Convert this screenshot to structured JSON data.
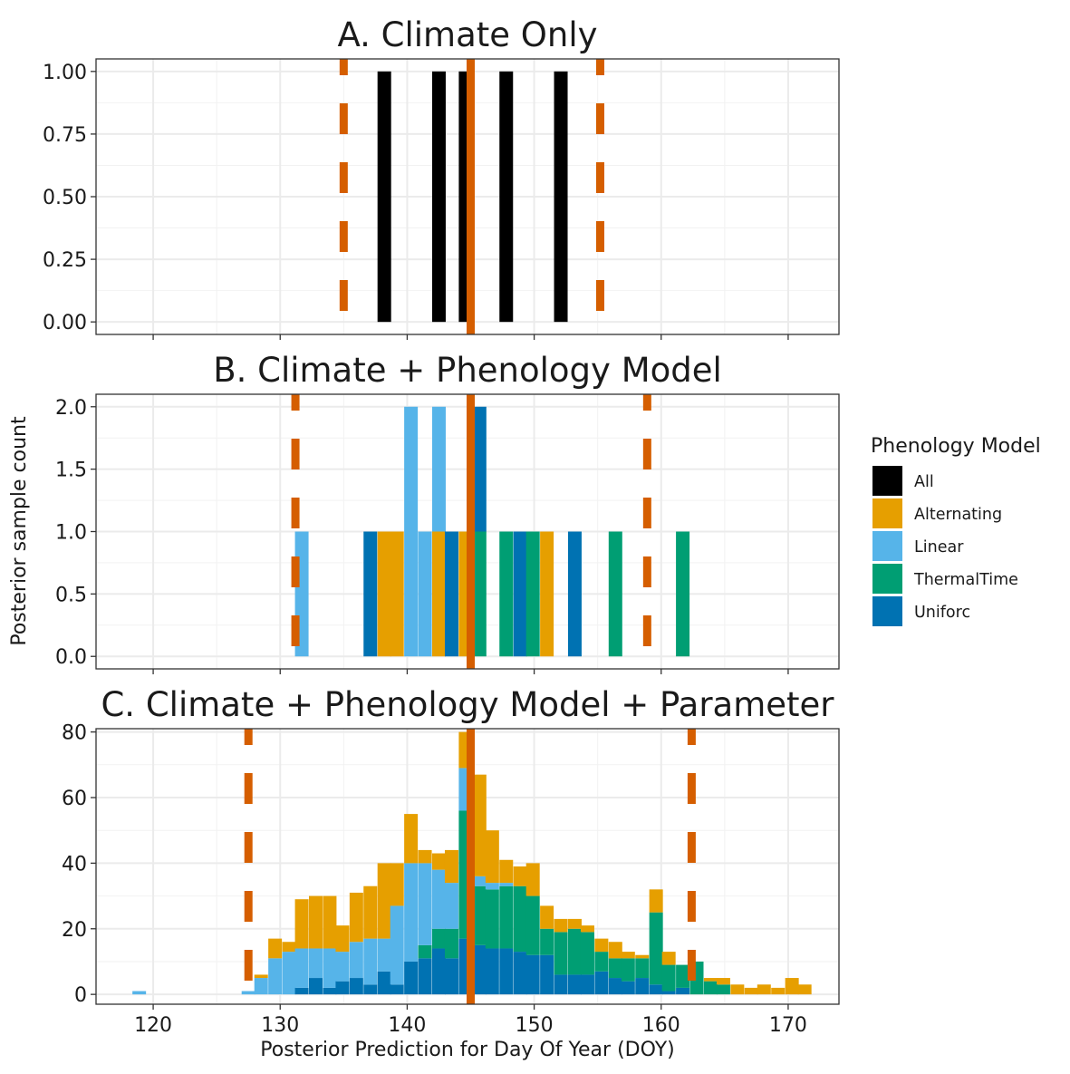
{
  "chart_data": {
    "type": "bar",
    "layout": "stacked histogram, three vertically arranged panels sharing one x axis",
    "shared": {
      "xlabel": "Posterior Prediction for Day Of Year (DOY)",
      "ylabel": "Posterior sample count",
      "xlim": [
        115.5,
        174
      ],
      "xticks": [
        120,
        130,
        140,
        150,
        160,
        170
      ],
      "bin_width": 1.07,
      "grid": true,
      "legend": {
        "title": "Phenology Model",
        "placement": "right",
        "entries": [
          {
            "name": "All",
            "color": "#000000"
          },
          {
            "name": "Alternating",
            "color": "#E69F00"
          },
          {
            "name": "Linear",
            "color": "#56B4E9"
          },
          {
            "name": "ThermalTime",
            "color": "#009E73"
          },
          {
            "name": "Uniforc",
            "color": "#0072B2"
          }
        ]
      },
      "reference_line": {
        "style": "solid",
        "color": "#D55E00",
        "x": 145.0
      }
    },
    "panels": [
      {
        "title": "A. Climate Only",
        "ylim": [
          -0.05,
          1.05
        ],
        "yticks": [
          "0.00",
          "0.25",
          "0.50",
          "0.75",
          "1.00"
        ],
        "ytick_values": [
          0,
          0.25,
          0.5,
          0.75,
          1.0
        ],
        "interval_lines": [
          135.0,
          155.2
        ],
        "bars": [
          {
            "x": 138.2,
            "series": "All",
            "value": 1
          },
          {
            "x": 142.5,
            "series": "All",
            "value": 1
          },
          {
            "x": 144.6,
            "series": "All",
            "value": 1
          },
          {
            "x": 147.8,
            "series": "All",
            "value": 1
          },
          {
            "x": 152.1,
            "series": "All",
            "value": 1
          }
        ]
      },
      {
        "title": "B. Climate + Phenology Model",
        "ylim": [
          -0.1,
          2.1
        ],
        "yticks": [
          "0.0",
          "0.5",
          "1.0",
          "1.5",
          "2.0"
        ],
        "ytick_values": [
          0,
          0.5,
          1.0,
          1.5,
          2.0
        ],
        "interval_lines": [
          131.2,
          158.9
        ],
        "bars": [
          {
            "x": 131.7,
            "series": "Linear",
            "value": 1
          },
          {
            "x": 137.1,
            "series": "Uniforc",
            "value": 1
          },
          {
            "x": 138.2,
            "series": "Alternating",
            "value": 1
          },
          {
            "x": 139.2,
            "series": "Alternating",
            "value": 1
          },
          {
            "x": 140.3,
            "series": "Linear",
            "value": 2
          },
          {
            "x": 141.4,
            "series": "Linear",
            "value": 1
          },
          {
            "x": 142.5,
            "series": "Alternating",
            "value": 1
          },
          {
            "x": 142.5,
            "series": "Linear",
            "value": 1
          },
          {
            "x": 143.5,
            "series": "Uniforc",
            "value": 1
          },
          {
            "x": 144.6,
            "series": "Alternating",
            "value": 1
          },
          {
            "x": 145.7,
            "series": "ThermalTime",
            "value": 1
          },
          {
            "x": 145.7,
            "series": "Uniforc",
            "value": 1
          },
          {
            "x": 147.8,
            "series": "ThermalTime",
            "value": 1
          },
          {
            "x": 148.9,
            "series": "Uniforc",
            "value": 1
          },
          {
            "x": 149.9,
            "series": "ThermalTime",
            "value": 1
          },
          {
            "x": 151.0,
            "series": "Alternating",
            "value": 1
          },
          {
            "x": 153.2,
            "series": "Uniforc",
            "value": 1
          },
          {
            "x": 156.4,
            "series": "ThermalTime",
            "value": 1
          },
          {
            "x": 161.7,
            "series": "ThermalTime",
            "value": 1
          }
        ]
      },
      {
        "title": "C. Climate + Phenology Model + Parameter",
        "ylim": [
          -3,
          81
        ],
        "yticks": [
          "0",
          "20",
          "40",
          "60",
          "80"
        ],
        "ytick_values": [
          0,
          20,
          40,
          60,
          80
        ],
        "interval_lines": [
          127.5,
          162.4
        ],
        "stack_order": [
          "Uniforc",
          "ThermalTime",
          "Linear",
          "Alternating"
        ],
        "x": [
          118.9,
          127.5,
          128.5,
          129.6,
          130.7,
          131.7,
          132.8,
          133.9,
          134.9,
          136.0,
          137.1,
          138.2,
          139.2,
          140.3,
          141.4,
          142.5,
          143.5,
          144.6,
          145.7,
          146.7,
          147.8,
          148.9,
          149.9,
          151.0,
          152.1,
          153.2,
          154.2,
          155.3,
          156.4,
          157.4,
          158.5,
          159.6,
          160.6,
          161.7,
          162.8,
          163.9,
          164.9,
          166.0,
          167.1,
          168.1,
          169.2,
          170.3,
          171.3
        ],
        "series": [
          {
            "name": "Uniforc",
            "values": [
              0,
              0,
              0,
              0,
              0,
              2,
              5,
              2,
              4,
              5,
              3,
              7,
              3,
              10,
              11,
              14,
              11,
              17,
              15,
              14,
              14,
              13,
              12,
              12,
              6,
              6,
              6,
              7,
              5,
              4,
              5,
              3,
              1,
              2,
              0,
              0,
              0,
              0,
              0,
              0,
              0,
              0,
              0
            ]
          },
          {
            "name": "ThermalTime",
            "values": [
              0,
              0,
              0,
              0,
              0,
              0,
              0,
              0,
              0,
              0,
              0,
              0,
              0,
              0,
              4,
              6,
              9,
              39,
              18,
              18,
              19,
              20,
              18,
              8,
              13,
              14,
              13,
              6,
              6,
              7,
              6,
              22,
              8,
              7,
              10,
              4,
              3,
              0,
              0,
              0,
              0,
              0,
              0
            ]
          },
          {
            "name": "Linear",
            "values": [
              1,
              1,
              5,
              11,
              13,
              12,
              9,
              12,
              9,
              11,
              14,
              10,
              24,
              30,
              25,
              18,
              14,
              13,
              3,
              2,
              1,
              0,
              0,
              0,
              0,
              0,
              0,
              0,
              0,
              0,
              0,
              0,
              0,
              0,
              0,
              0,
              0,
              0,
              0,
              0,
              0,
              0,
              0
            ]
          },
          {
            "name": "Alternating",
            "values": [
              0,
              0,
              1,
              6,
              3,
              15,
              16,
              16,
              8,
              15,
              16,
              23,
              13,
              15,
              4,
              5,
              10,
              11,
              31,
              16,
              7,
              6,
              10,
              7,
              4,
              3,
              2,
              4,
              5,
              2,
              1,
              7,
              4,
              0,
              0,
              1,
              2,
              3,
              2,
              3,
              2,
              5,
              3
            ]
          }
        ]
      }
    ]
  }
}
